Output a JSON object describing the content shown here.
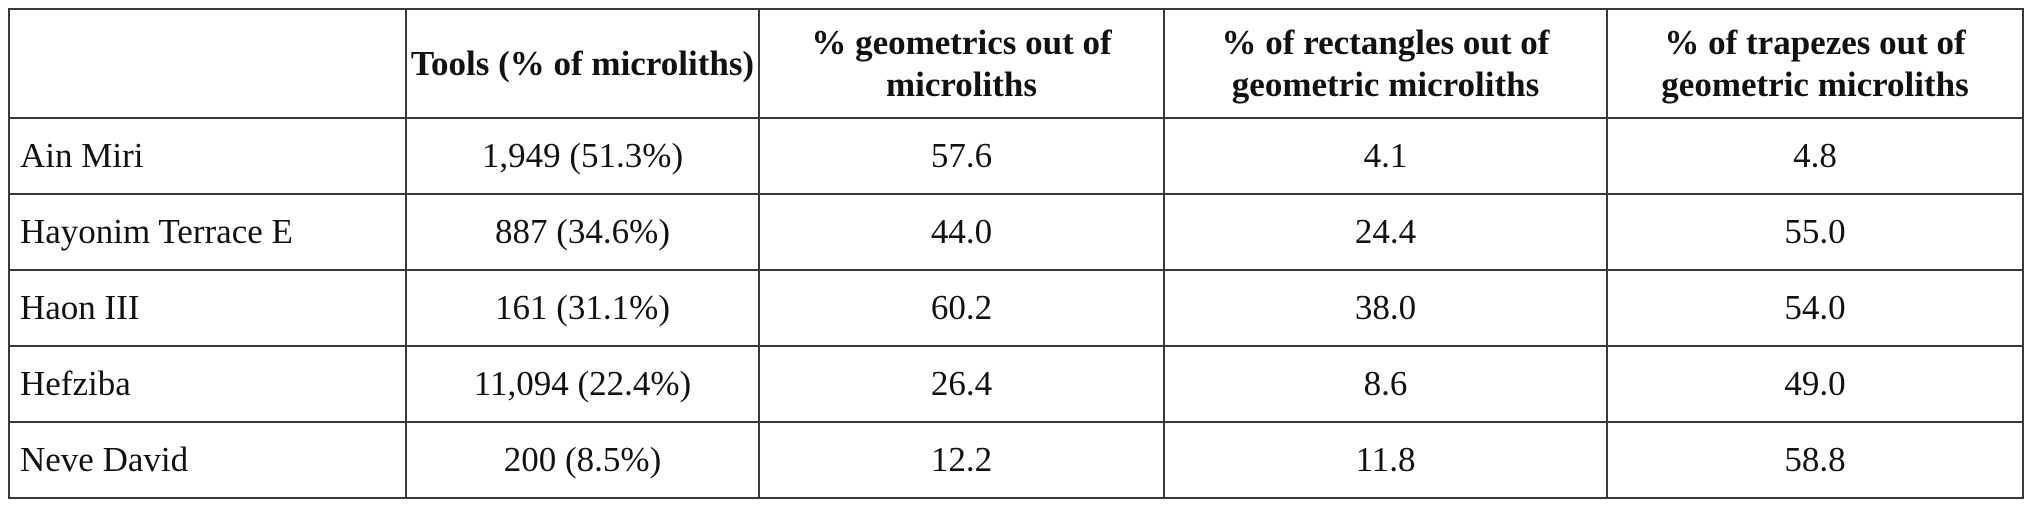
{
  "table": {
    "headers": [
      "",
      "Tools (% of microliths)",
      "% geometrics out of microliths",
      "% of rectangles out of geometric microliths",
      "% of trapezes out of geometric microliths"
    ],
    "rows": [
      [
        "Ain Miri",
        "1,949 (51.3%)",
        "57.6",
        "4.1",
        "4.8"
      ],
      [
        "Hayonim Terrace E",
        "887 (34.6%)",
        "44.0",
        "24.4",
        "55.0"
      ],
      [
        "Haon III",
        "161 (31.1%)",
        "60.2",
        "38.0",
        "54.0"
      ],
      [
        "Hefziba",
        "11,094 (22.4%)",
        "26.4",
        "8.6",
        "49.0"
      ],
      [
        "Neve David",
        "200 (8.5%)",
        "12.2",
        "11.8",
        "58.8"
      ]
    ]
  }
}
